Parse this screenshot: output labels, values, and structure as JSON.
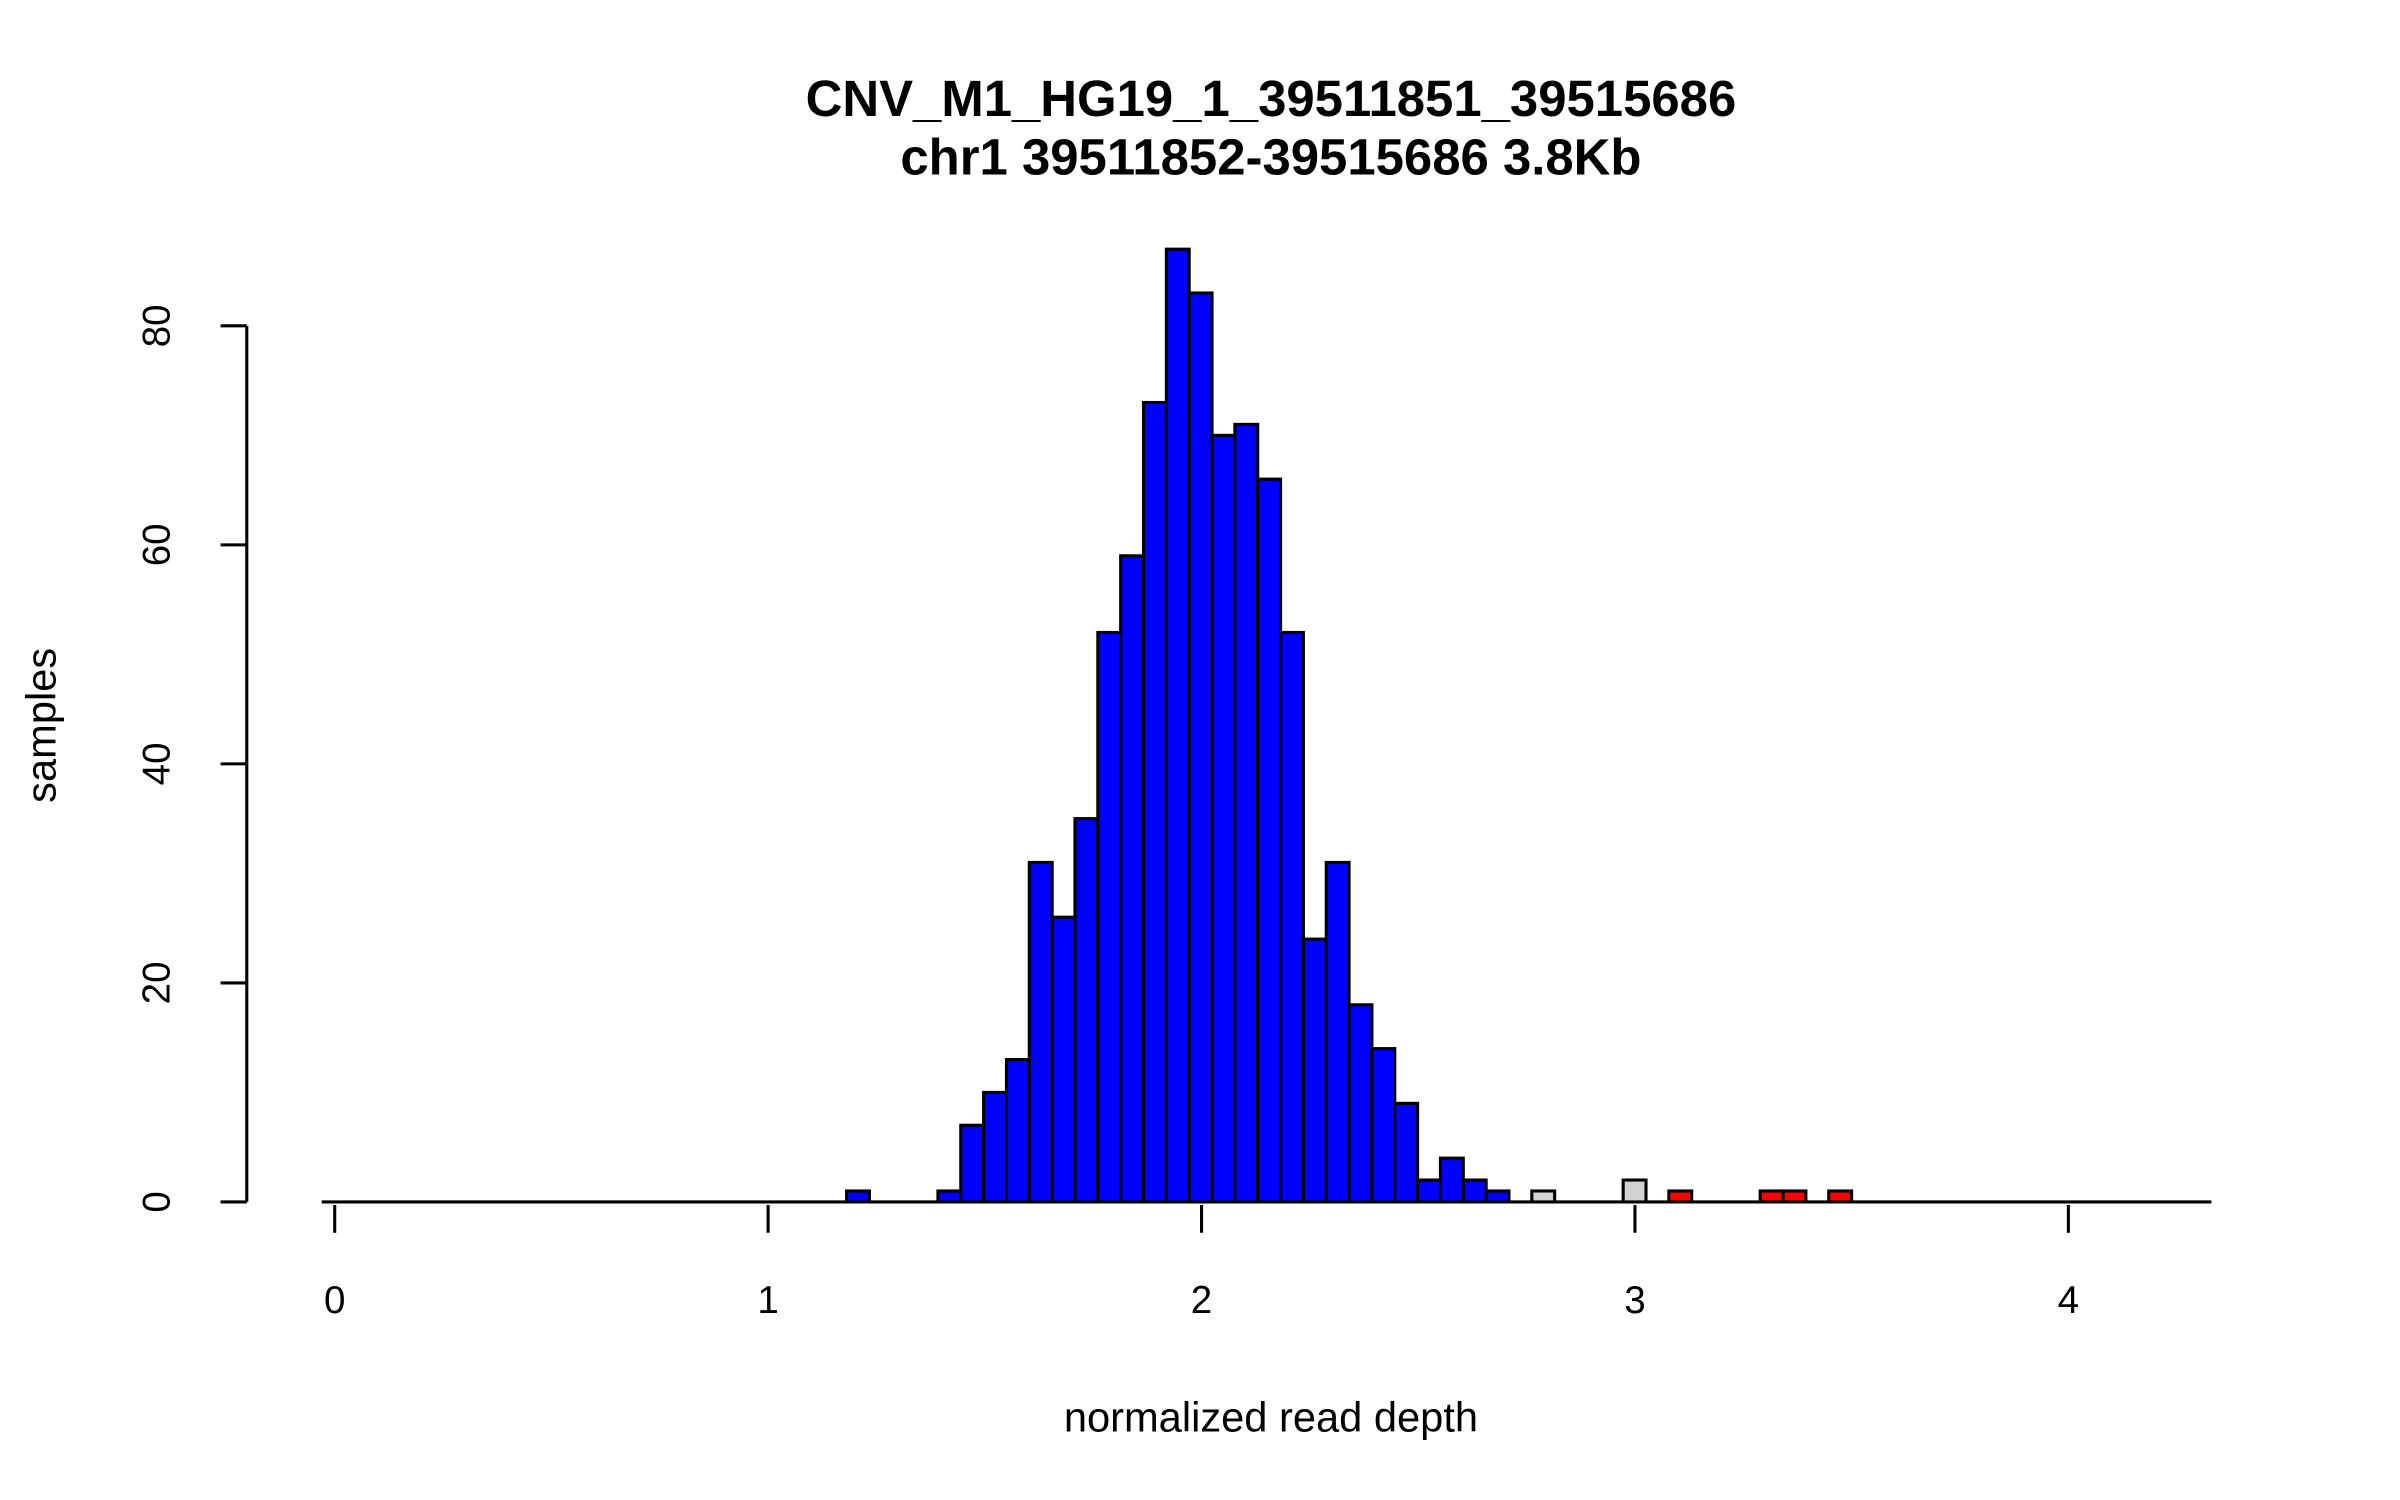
{
  "chart_data": {
    "type": "bar",
    "title": "CNV_M1_HG19_1_39511851_39515686",
    "subtitle": "chr1 39511852-39515686 3.8Kb",
    "xlabel": "normalized read depth",
    "ylabel": "samples",
    "xlim": [
      0,
      4.3
    ],
    "ylim": [
      0,
      87
    ],
    "x_ticks": [
      "0",
      "1",
      "2",
      "3",
      "4"
    ],
    "y_ticks": [
      "0",
      "20",
      "40",
      "60",
      "80"
    ],
    "bin_start": 1.181,
    "bin_width": 0.0527,
    "baseline_range": [
      -0.03,
      4.33
    ],
    "colors": {
      "normal": "#0000ff",
      "uncertain": "#d3d3d3",
      "dup": "#ff0000"
    },
    "bins": [
      {
        "i": 0,
        "count": 1,
        "class": "normal"
      },
      {
        "i": 4,
        "count": 1,
        "class": "normal"
      },
      {
        "i": 5,
        "count": 7,
        "class": "normal"
      },
      {
        "i": 6,
        "count": 10,
        "class": "normal"
      },
      {
        "i": 7,
        "count": 13,
        "class": "normal"
      },
      {
        "i": 8,
        "count": 31,
        "class": "normal"
      },
      {
        "i": 9,
        "count": 26,
        "class": "normal"
      },
      {
        "i": 10,
        "count": 35,
        "class": "normal"
      },
      {
        "i": 11,
        "count": 52,
        "class": "normal"
      },
      {
        "i": 12,
        "count": 59,
        "class": "normal"
      },
      {
        "i": 13,
        "count": 73,
        "class": "normal"
      },
      {
        "i": 14,
        "count": 87,
        "class": "normal"
      },
      {
        "i": 15,
        "count": 83,
        "class": "normal"
      },
      {
        "i": 16,
        "count": 70,
        "class": "normal"
      },
      {
        "i": 17,
        "count": 71,
        "class": "normal"
      },
      {
        "i": 18,
        "count": 66,
        "class": "normal"
      },
      {
        "i": 19,
        "count": 52,
        "class": "normal"
      },
      {
        "i": 20,
        "count": 24,
        "class": "normal"
      },
      {
        "i": 21,
        "count": 31,
        "class": "normal"
      },
      {
        "i": 22,
        "count": 18,
        "class": "normal"
      },
      {
        "i": 23,
        "count": 14,
        "class": "normal"
      },
      {
        "i": 24,
        "count": 9,
        "class": "normal"
      },
      {
        "i": 25,
        "count": 2,
        "class": "normal"
      },
      {
        "i": 26,
        "count": 4,
        "class": "normal"
      },
      {
        "i": 27,
        "count": 2,
        "class": "normal"
      },
      {
        "i": 28,
        "count": 1,
        "class": "normal"
      },
      {
        "i": 30,
        "count": 1,
        "class": "uncertain"
      },
      {
        "i": 34,
        "count": 2,
        "class": "uncertain"
      },
      {
        "i": 36,
        "count": 1,
        "class": "dup"
      },
      {
        "i": 40,
        "count": 1,
        "class": "dup"
      },
      {
        "i": 41,
        "count": 1,
        "class": "dup"
      },
      {
        "i": 43,
        "count": 1,
        "class": "dup"
      }
    ]
  }
}
